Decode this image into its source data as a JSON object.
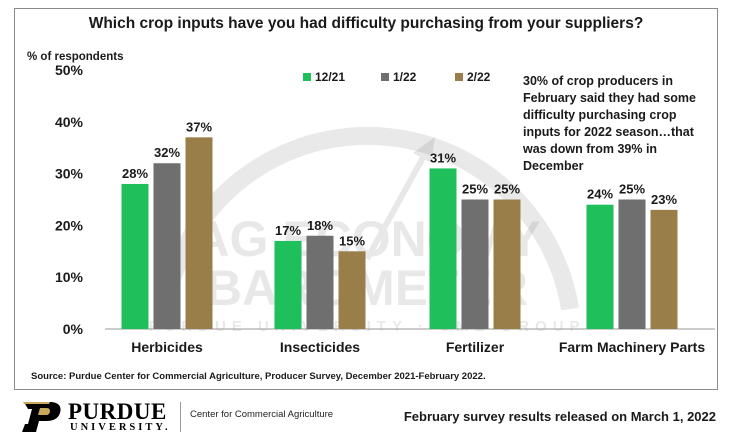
{
  "chart_data": {
    "type": "bar",
    "title": "Which crop inputs have you had difficulty purchasing from your suppliers?",
    "ylabel": "% of respondents",
    "ylim": [
      0,
      50
    ],
    "yticks": [
      "0%",
      "10%",
      "20%",
      "30%",
      "40%",
      "50%"
    ],
    "categories": [
      "Herbicides",
      "Insecticides",
      "Fertilizer",
      "Farm Machinery Parts"
    ],
    "series": [
      {
        "name": "12/21",
        "color": "#1fbf5c",
        "values": [
          28,
          17,
          31,
          24
        ],
        "labels": [
          "28%",
          "17%",
          "31%",
          "24%"
        ]
      },
      {
        "name": "1/22",
        "color": "#6f6f6f",
        "values": [
          32,
          18,
          25,
          25
        ],
        "labels": [
          "32%",
          "18%",
          "25%",
          "25%"
        ]
      },
      {
        "name": "2/22",
        "color": "#9a7e49",
        "values": [
          37,
          15,
          25,
          23
        ],
        "labels": [
          "37%",
          "15%",
          "25%",
          "23%"
        ]
      }
    ],
    "legend_position": "top-center",
    "grid": false
  },
  "annotation": "30% of crop producers in February said they had some difficulty purchasing crop inputs for 2022 season…that was down from 39% in December",
  "source": "Source:  Purdue Center for Commercial Agriculture, Producer Survey, December 2021-February 2022.",
  "footer": {
    "logo_name": "PURDUE",
    "logo_sub": "UNIVERSITY.",
    "center_name": "Center for Commercial Agriculture",
    "release_note": "February survey results released on March 1, 2022"
  },
  "watermark": {
    "line1": "AG ECONOMY",
    "line2": "BAROMETER",
    "line3": "PURDUE UNIVERSITY · CME GROUP"
  }
}
